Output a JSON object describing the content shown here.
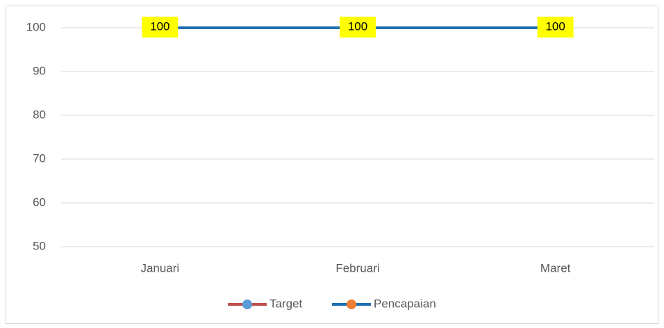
{
  "chart_data": {
    "type": "line",
    "categories": [
      "Januari",
      "Februari",
      "Maret"
    ],
    "series": [
      {
        "name": "Target",
        "color": "#c0504d",
        "marker_color": "#5b9bd5",
        "values": [
          100,
          100,
          100
        ]
      },
      {
        "name": "Pencapaian",
        "color": "#1f6fb0",
        "marker_color": "#ed7d31",
        "values": [
          100,
          100,
          100
        ],
        "data_labels": true,
        "label_background": "#ffff00"
      }
    ],
    "ylim": [
      50,
      100
    ],
    "yticks": [
      50,
      60,
      70,
      80,
      90,
      100
    ],
    "grid": true,
    "legend": "bottom"
  }
}
